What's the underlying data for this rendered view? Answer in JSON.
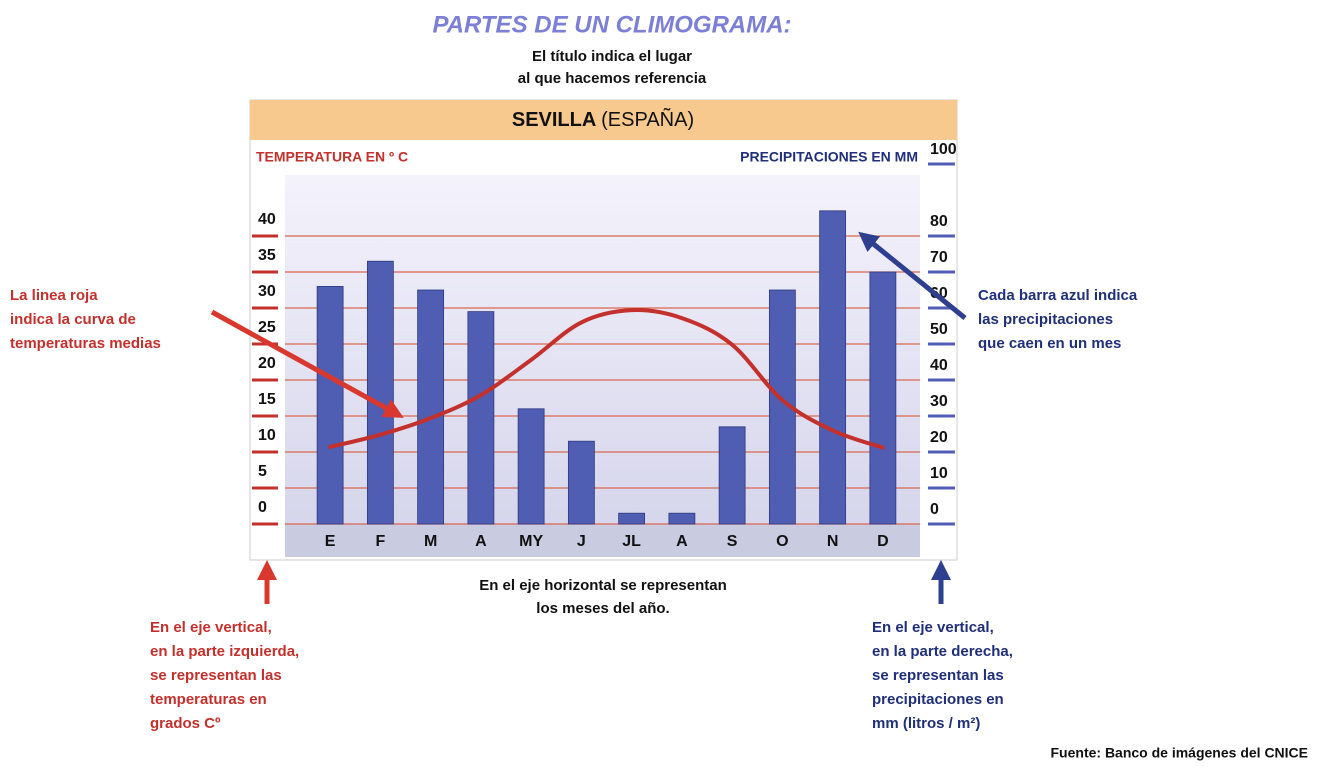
{
  "heading": "PARTES DE UN CLIMOGRAMA:",
  "title_note": [
    "El título indica el lugar",
    "al que hacemos referencia"
  ],
  "chart_data": {
    "type": "climograph",
    "title": "SEVILLA",
    "subtitle": "(ESPAÑA)",
    "ylabel": "TEMPERATURA EN º C",
    "y2label": "PRECIPITACIONES EN MM",
    "categories": [
      "E",
      "F",
      "M",
      "A",
      "MY",
      "J",
      "JL",
      "A",
      "S",
      "O",
      "N",
      "D"
    ],
    "ylim": [
      0,
      50
    ],
    "yticks": [
      0,
      5,
      10,
      15,
      20,
      25,
      30,
      35,
      40
    ],
    "y2lim": [
      0,
      100
    ],
    "y2ticks": [
      0,
      10,
      20,
      30,
      40,
      50,
      60,
      70,
      80,
      100
    ],
    "grid": true,
    "series": [
      {
        "type": "bar",
        "axis": "y2",
        "color": "#4f5db3",
        "values": [
          66,
          73,
          65,
          59,
          32,
          23,
          3,
          3,
          27,
          65,
          87,
          70
        ]
      },
      {
        "type": "line",
        "axis": "y",
        "color": "#c4302b",
        "values": [
          10.7,
          12.4,
          14.7,
          17.9,
          22.8,
          28,
          29.7,
          28.6,
          24.9,
          17.2,
          13,
          10.6
        ]
      }
    ]
  },
  "annotations": {
    "line_note": [
      "La linea roja",
      "indica la curva de",
      "temperaturas medias"
    ],
    "bar_note": [
      "Cada barra azul indica",
      "las precipitaciones",
      "que caen en un mes"
    ],
    "x_note": [
      "En el eje horizontal se representan",
      "los meses del año."
    ],
    "left_axis_note": [
      "En el eje vertical,",
      "en la parte izquierda,",
      "se representan las",
      "temperaturas en",
      "grados Cº"
    ],
    "right_axis_note": [
      "En el eje vertical,",
      "en la parte derecha,",
      "se representan las",
      "precipitaciones en",
      "mm (litros / m²)"
    ],
    "source": "Fuente: Banco de imágenes del CNICE"
  }
}
